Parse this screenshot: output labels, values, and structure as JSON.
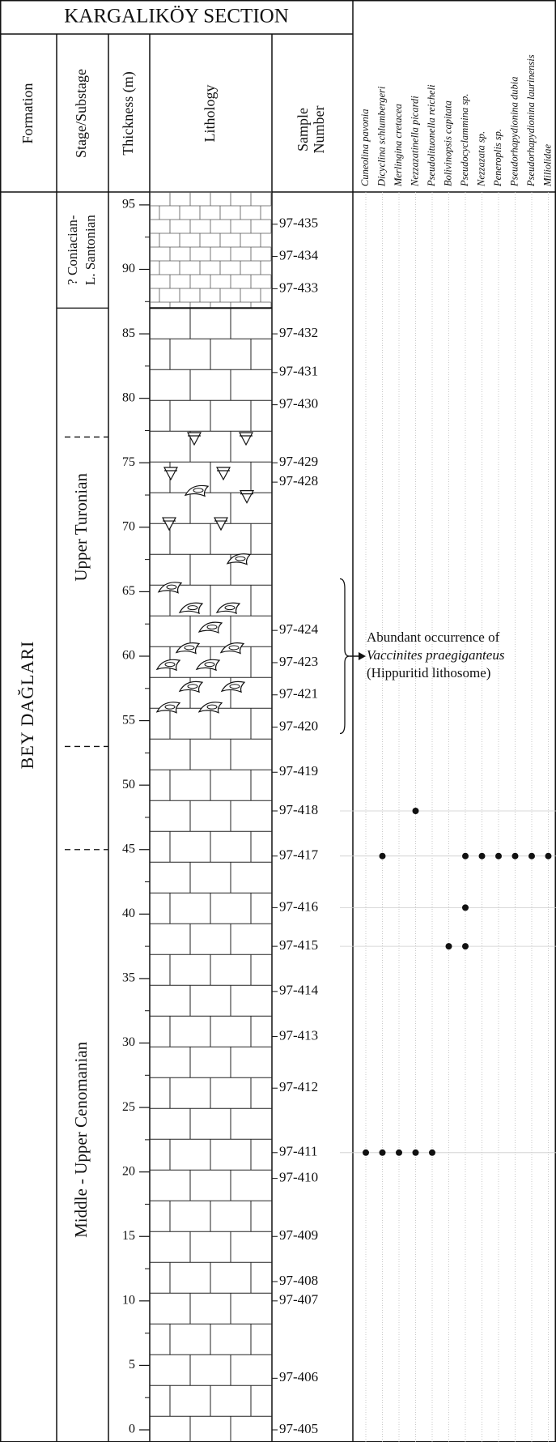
{
  "header": {
    "title": "KARGALIKÖY SECTION",
    "columns": {
      "formation": "Formation",
      "stage": "Stage/Substage",
      "thickness": "Thickness (m)",
      "lithology": "Lithology",
      "sample": [
        "Sample",
        "Number"
      ]
    }
  },
  "taxa": [
    {
      "name": "Cuneolina pavonia",
      "occurrences": [
        "97-411"
      ]
    },
    {
      "name": "Dicyclina schlumbergeri",
      "occurrences": [
        "97-411",
        "97-417"
      ]
    },
    {
      "name": "Merlingina cretacea",
      "occurrences": [
        "97-411"
      ]
    },
    {
      "name": "Nezzazatinella picardi",
      "occurrences": [
        "97-411",
        "97-418"
      ]
    },
    {
      "name": "Pseudolituonella reicheli",
      "occurrences": [
        "97-411"
      ]
    },
    {
      "name": "Bolivinopsis capitata",
      "occurrences": [
        "97-415"
      ]
    },
    {
      "name": "Pseudocyclammina sp.",
      "occurrences": [
        "97-415",
        "97-416",
        "97-417"
      ]
    },
    {
      "name": "Nezzazata sp.",
      "occurrences": [
        "97-417"
      ]
    },
    {
      "name": "Peneroplis sp.",
      "occurrences": [
        "97-417"
      ]
    },
    {
      "name": "Pseudorhapydionina dubia",
      "occurrences": [
        "97-417"
      ]
    },
    {
      "name": "Pseudorhapydionina laurinensis",
      "occurrences": [
        "97-417"
      ]
    },
    {
      "name": "Miliolidae",
      "occurrences": [
        "97-417"
      ]
    }
  ],
  "formation": "BEY DAĞLARI",
  "stages": [
    {
      "lines": [
        "? Coniacian-",
        "L. Santonian"
      ],
      "from": 87,
      "to": 96
    },
    {
      "lines": [
        "Upper Turonian"
      ],
      "from": 53,
      "to": 87
    },
    {
      "lines": [
        "Middle - Upper Cenomanian"
      ],
      "from": 0,
      "to": 45
    }
  ],
  "thickness": {
    "range": [
      0,
      96
    ],
    "ticks": [
      0,
      5,
      10,
      15,
      20,
      25,
      30,
      35,
      40,
      45,
      50,
      55,
      60,
      65,
      70,
      75,
      80,
      85,
      90,
      95
    ]
  },
  "samples": [
    {
      "label": "97-435",
      "height": 93.5
    },
    {
      "label": "97-434",
      "height": 91
    },
    {
      "label": "97-433",
      "height": 88.5
    },
    {
      "label": "97-432",
      "height": 85
    },
    {
      "label": "97-431",
      "height": 82
    },
    {
      "label": "97-430",
      "height": 79.5
    },
    {
      "label": "97-429",
      "height": 75
    },
    {
      "label": "97-428",
      "height": 73.5
    },
    {
      "label": "97-424",
      "height": 62
    },
    {
      "label": "97-423",
      "height": 59.5
    },
    {
      "label": "97-421",
      "height": 57
    },
    {
      "label": "97-420",
      "height": 54.5
    },
    {
      "label": "97-419",
      "height": 51
    },
    {
      "label": "97-418",
      "height": 48
    },
    {
      "label": "97-417",
      "height": 44.5
    },
    {
      "label": "97-416",
      "height": 40.5
    },
    {
      "label": "97-415",
      "height": 37.5
    },
    {
      "label": "97-414",
      "height": 34
    },
    {
      "label": "97-413",
      "height": 30.5
    },
    {
      "label": "97-412",
      "height": 26.5
    },
    {
      "label": "97-411",
      "height": 21.5
    },
    {
      "label": "97-410",
      "height": 19.5
    },
    {
      "label": "97-409",
      "height": 15
    },
    {
      "label": "97-408",
      "height": 11.5
    },
    {
      "label": "97-407",
      "height": 10
    },
    {
      "label": "97-406",
      "height": 4
    },
    {
      "label": "97-405",
      "height": 0
    }
  ],
  "annotation": {
    "lines": [
      "Abundant occurrence of",
      "Vaccinites praegiganteus",
      "(Hippuritid lithosome)"
    ],
    "range": [
      54,
      66
    ]
  }
}
